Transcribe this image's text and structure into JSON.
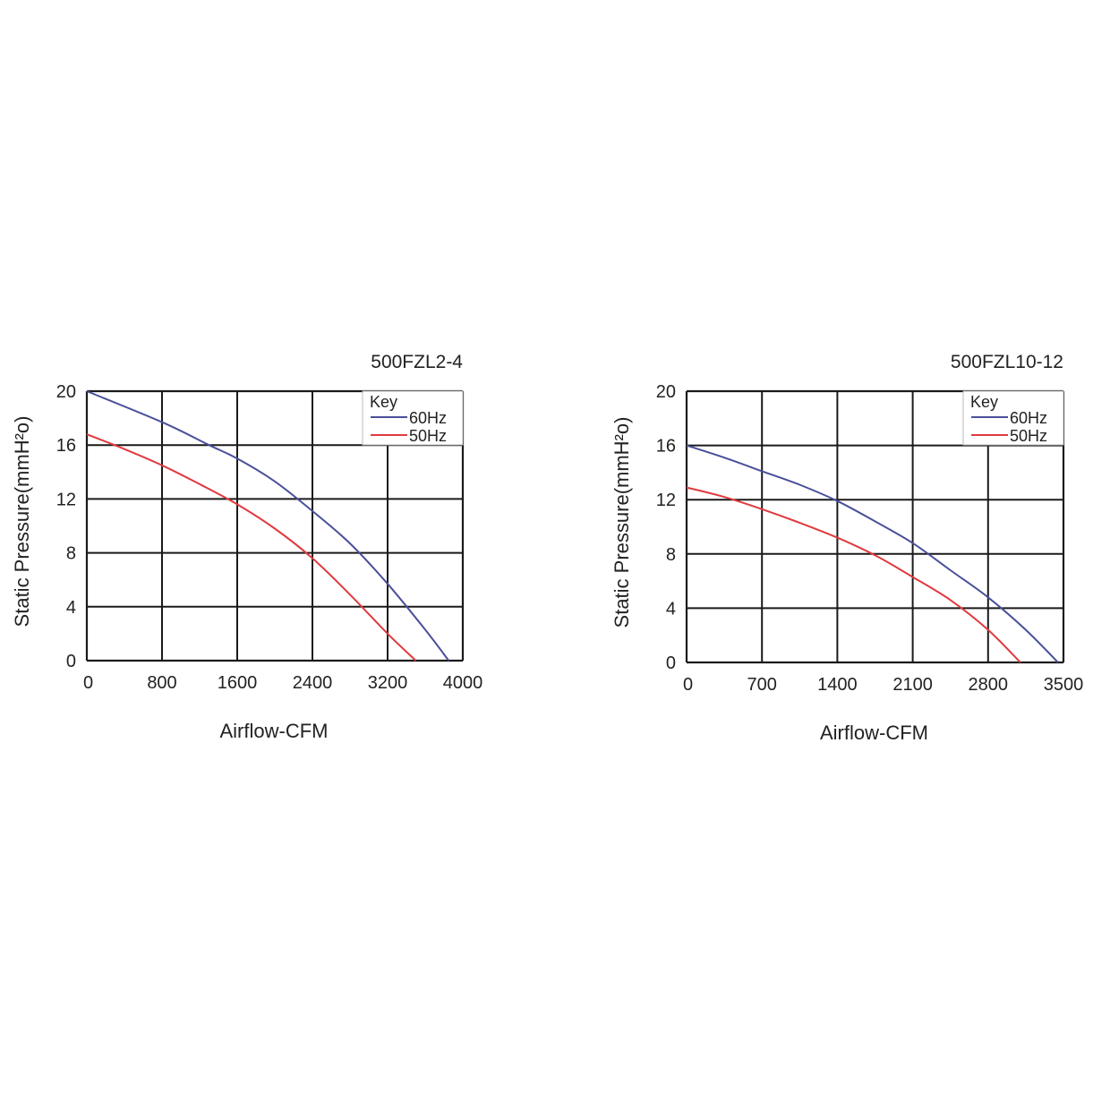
{
  "colors": {
    "line_60hz": "#4a4f9a",
    "line_50hz": "#e0393e",
    "grid": "#1a1a1a",
    "text": "#222222"
  },
  "chart_data": [
    {
      "type": "line",
      "title": "500FZL2-4",
      "xlabel": "Airflow-CFM",
      "ylabel": "Static Pressure(mmH²o)",
      "xlim": [
        0,
        4000
      ],
      "ylim": [
        0,
        20
      ],
      "xticks": [
        "0",
        "800",
        "1600",
        "2400",
        "3200",
        "4000"
      ],
      "yticks": [
        "0",
        "4",
        "8",
        "12",
        "16",
        "20"
      ],
      "grid": true,
      "legend": {
        "title": "Key",
        "position": "top-right"
      },
      "series": [
        {
          "name": "60Hz",
          "color": "#4a4f9a",
          "x": [
            0,
            800,
            1300,
            1600,
            2000,
            2400,
            2800,
            3200,
            3600,
            3850
          ],
          "y": [
            20,
            17.7,
            16,
            15,
            13.3,
            11.1,
            8.7,
            5.7,
            2.3,
            0
          ]
        },
        {
          "name": "50Hz",
          "color": "#e0393e",
          "x": [
            0,
            400,
            800,
            1200,
            1600,
            2000,
            2400,
            2800,
            3200,
            3500
          ],
          "y": [
            16.8,
            15.7,
            14.5,
            13.1,
            11.6,
            9.8,
            7.6,
            4.9,
            2.0,
            0
          ]
        }
      ]
    },
    {
      "type": "line",
      "title": "500FZL10-12",
      "xlabel": "Airflow-CFM",
      "ylabel": "Static Pressure(mmH²o)",
      "xlim": [
        0,
        3500
      ],
      "ylim": [
        0,
        20
      ],
      "xticks": [
        "0",
        "700",
        "1400",
        "2100",
        "2800",
        "3500"
      ],
      "yticks": [
        "0",
        "4",
        "8",
        "12",
        "16",
        "20"
      ],
      "grid": true,
      "legend": {
        "title": "Key",
        "position": "top-right"
      },
      "series": [
        {
          "name": "60Hz",
          "color": "#4a4f9a",
          "x": [
            0,
            350,
            700,
            1050,
            1400,
            1750,
            2100,
            2450,
            2800,
            3150,
            3450
          ],
          "y": [
            16,
            15.1,
            14.1,
            13.1,
            11.9,
            10.4,
            8.8,
            6.8,
            4.8,
            2.4,
            0
          ]
        },
        {
          "name": "50Hz",
          "color": "#e0393e",
          "x": [
            0,
            350,
            700,
            1050,
            1400,
            1750,
            2100,
            2450,
            2800,
            3100
          ],
          "y": [
            12.9,
            12.2,
            11.3,
            10.3,
            9.2,
            7.9,
            6.3,
            4.6,
            2.4,
            0
          ]
        }
      ]
    }
  ]
}
